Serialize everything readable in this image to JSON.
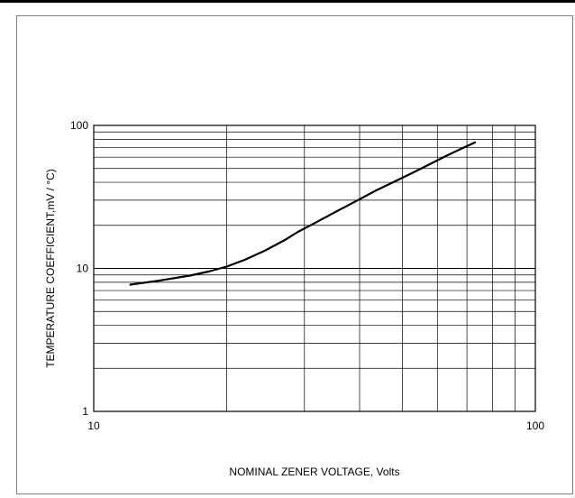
{
  "chart_data": {
    "type": "line",
    "title": "",
    "xlabel": "NOMINAL ZENER VOLTAGE, Volts",
    "ylabel": "TEMPERATURE COEFFICIENT,mV / °C)",
    "xscale": "log",
    "yscale": "log",
    "xlim": [
      10,
      100
    ],
    "ylim": [
      1,
      100
    ],
    "xticks": [
      10,
      100
    ],
    "xtick_labels": [
      "10",
      "100"
    ],
    "yticks": [
      1,
      10,
      100
    ],
    "ytick_labels": [
      "1",
      "10",
      "100"
    ],
    "grid": true,
    "legend": "none",
    "series": [
      {
        "x": [
          12.1,
          14.0,
          16.5,
          18.2,
          20.0,
          22.0,
          24.4,
          27.0,
          29.0,
          31.5,
          35.0,
          39.0,
          43.5,
          48.0,
          53.0,
          58.0,
          63.0,
          67.5,
          73.0
        ],
        "y": [
          7.7,
          8.2,
          8.9,
          9.5,
          10.3,
          11.5,
          13.3,
          15.7,
          18.0,
          20.6,
          24.5,
          29.2,
          35.0,
          40.5,
          47.0,
          54.0,
          61.5,
          68.0,
          76.0
        ]
      }
    ]
  },
  "colors": {
    "line": "#000000",
    "grid": "#000000",
    "frame_border": "#808080"
  }
}
